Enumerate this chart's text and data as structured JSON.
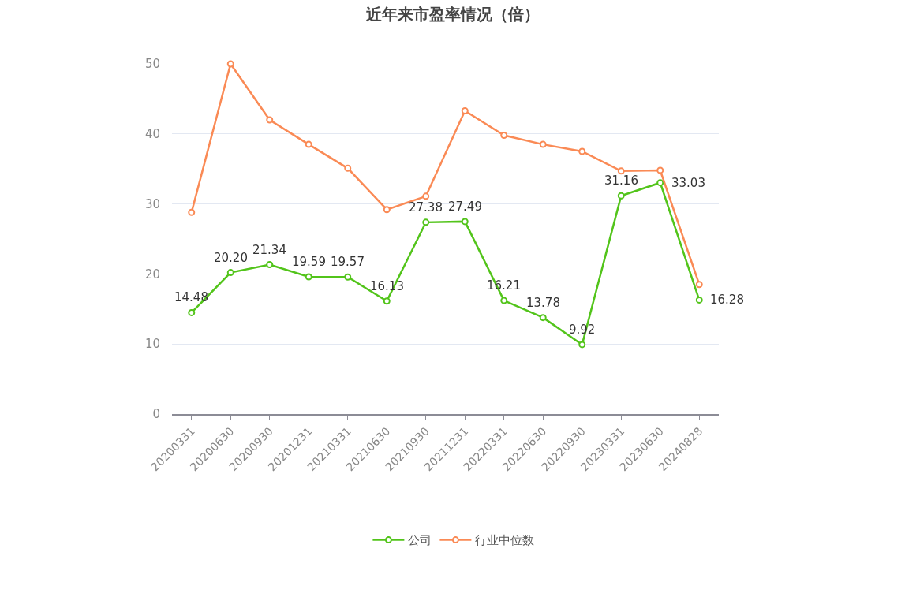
{
  "chart_data": {
    "type": "line",
    "title": "近年来市盈率情况（倍）",
    "categories": [
      "20200331",
      "20200630",
      "20200930",
      "20201231",
      "20210331",
      "20210630",
      "20210930",
      "20211231",
      "20220331",
      "20220630",
      "20220930",
      "20230331",
      "20230630",
      "20240828"
    ],
    "series": [
      {
        "name": "公司",
        "color": "#52c41a",
        "values": [
          14.48,
          20.2,
          21.34,
          19.59,
          19.57,
          16.13,
          27.38,
          27.49,
          16.21,
          13.78,
          9.92,
          31.16,
          33.03,
          16.28
        ],
        "value_labels": [
          "14.48",
          "20.20",
          "21.34",
          "19.59",
          "19.57",
          "16.13",
          "27.38",
          "27.49",
          "16.21",
          "13.78",
          "9.92",
          "31.16",
          "33.03",
          "16.28"
        ]
      },
      {
        "name": "行业中位数",
        "color": "#fa8a55",
        "values": [
          28.8,
          50.0,
          42.0,
          38.5,
          35.1,
          29.2,
          31.1,
          43.3,
          39.8,
          38.5,
          37.5,
          34.7,
          34.8,
          18.5
        ]
      }
    ],
    "ylim": [
      0,
      50
    ],
    "yticks": [
      0,
      10,
      20,
      30,
      40,
      50
    ],
    "grid": "y",
    "legend": "bottom",
    "marker": "circle",
    "line_style": "solid"
  }
}
